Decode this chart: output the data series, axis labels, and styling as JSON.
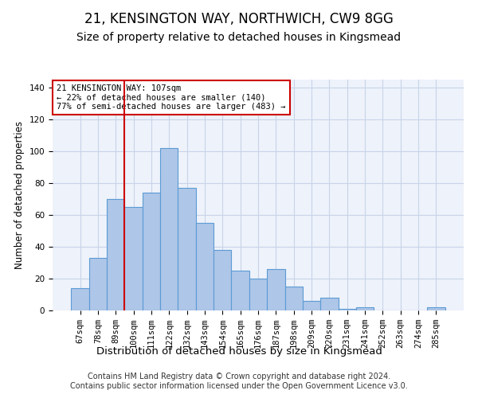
{
  "title1": "21, KENSINGTON WAY, NORTHWICH, CW9 8GG",
  "title2": "Size of property relative to detached houses in Kingsmead",
  "xlabel": "Distribution of detached houses by size in Kingsmead",
  "ylabel": "Number of detached properties",
  "bar_labels": [
    "67sqm",
    "78sqm",
    "89sqm",
    "100sqm",
    "111sqm",
    "122sqm",
    "132sqm",
    "143sqm",
    "154sqm",
    "165sqm",
    "176sqm",
    "187sqm",
    "198sqm",
    "209sqm",
    "220sqm",
    "231sqm",
    "241sqm",
    "252sqm",
    "263sqm",
    "274sqm",
    "285sqm"
  ],
  "bar_heights": [
    14,
    33,
    70,
    65,
    74,
    102,
    77,
    55,
    38,
    25,
    20,
    26,
    15,
    6,
    8,
    1,
    2,
    0,
    0,
    0,
    2
  ],
  "bar_color": "#aec6e8",
  "bar_edge_color": "#5b9bd5",
  "grid_color": "#c8d4e8",
  "bg_color": "#eef2fa",
  "vline_color": "#cc0000",
  "vline_pos": 2.5,
  "annotation_text": "21 KENSINGTON WAY: 107sqm\n← 22% of detached houses are smaller (140)\n77% of semi-detached houses are larger (483) →",
  "annotation_box_color": "#ffffff",
  "annotation_box_edge": "#cc0000",
  "ylim": [
    0,
    145
  ],
  "yticks": [
    0,
    20,
    40,
    60,
    80,
    100,
    120,
    140
  ],
  "footer_text": "Contains HM Land Registry data © Crown copyright and database right 2024.\nContains public sector information licensed under the Open Government Licence v3.0.",
  "title1_fontsize": 12,
  "title2_fontsize": 10,
  "xlabel_fontsize": 9.5,
  "ylabel_fontsize": 8.5,
  "tick_fontsize": 7.5,
  "footer_fontsize": 7
}
